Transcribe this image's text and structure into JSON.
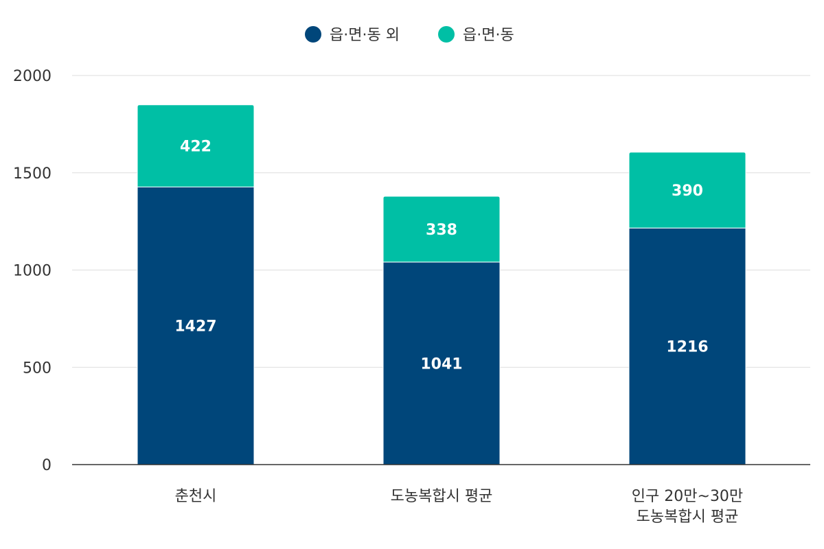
{
  "chart_data": {
    "type": "bar",
    "stacked": true,
    "categories": [
      [
        "춘천시"
      ],
      [
        "도농복합시 평균"
      ],
      [
        "인구 20만~30만",
        "도농복합시 평균"
      ]
    ],
    "series": [
      {
        "name": "읍·면·동 외",
        "values": [
          1427,
          1041,
          1216
        ],
        "color": "#00467a"
      },
      {
        "name": "읍·면·동",
        "values": [
          422,
          338,
          390
        ],
        "color": "#00bfa5"
      }
    ],
    "ylim": [
      0,
      2000
    ],
    "yticks": [
      0,
      500,
      1000,
      1500,
      2000
    ],
    "grid": true,
    "legend_position": "top-center",
    "xlabel": "",
    "ylabel": "",
    "title": ""
  }
}
